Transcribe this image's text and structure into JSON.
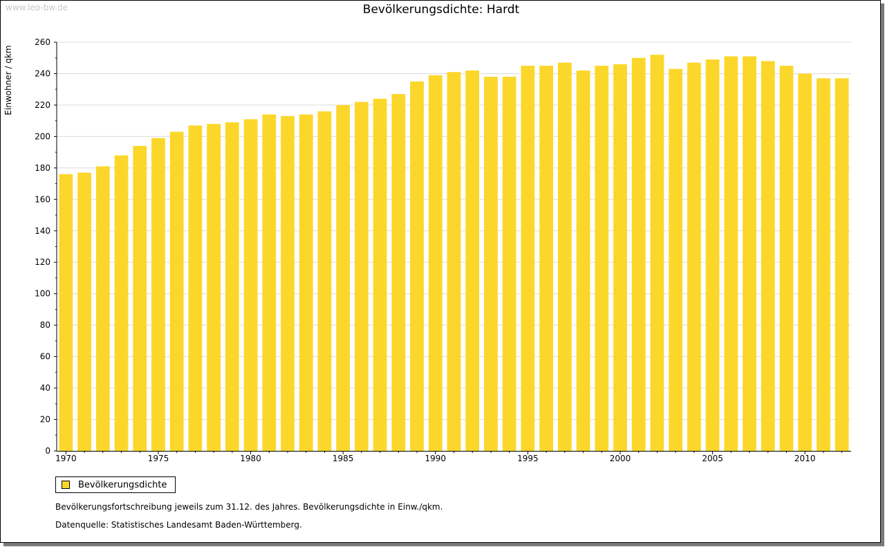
{
  "watermark": "www.leo-bw.de",
  "chart_data": {
    "type": "bar",
    "title": "Bevölkerungsdichte: Hardt",
    "xlabel": "",
    "ylabel": "Einwohner / qkm",
    "ylim": [
      0,
      260
    ],
    "yticks": [
      0,
      20,
      40,
      60,
      80,
      100,
      120,
      140,
      160,
      180,
      200,
      220,
      240,
      260
    ],
    "grid": true,
    "legend": "bottom-left",
    "categories": [
      "1970",
      "1971",
      "1972",
      "1973",
      "1974",
      "1975",
      "1976",
      "1977",
      "1978",
      "1979",
      "1980",
      "1981",
      "1982",
      "1983",
      "1984",
      "1985",
      "1986",
      "1987",
      "1988",
      "1989",
      "1990",
      "1991",
      "1992",
      "1993",
      "1994",
      "1995",
      "1996",
      "1997",
      "1998",
      "1999",
      "2000",
      "2001",
      "2002",
      "2003",
      "2004",
      "2005",
      "2006",
      "2007",
      "2008",
      "2009",
      "2010",
      "2011",
      "2012"
    ],
    "xtick_labels": [
      "1970",
      "1975",
      "1980",
      "1985",
      "1990",
      "1995",
      "2000",
      "2005",
      "2010"
    ],
    "series": [
      {
        "name": "Bevölkerungsdichte",
        "color": "#fcd72b",
        "values": [
          176,
          177,
          181,
          188,
          194,
          199,
          203,
          207,
          208,
          209,
          211,
          214,
          213,
          214,
          216,
          220,
          222,
          224,
          227,
          235,
          239,
          241,
          242,
          238,
          238,
          245,
          245,
          247,
          242,
          245,
          246,
          250,
          252,
          243,
          247,
          249,
          251,
          251,
          248,
          245,
          240,
          237,
          237
        ]
      }
    ]
  },
  "legend": {
    "label": "Bevölkerungsdichte",
    "color": "#fcd72b"
  },
  "footnotes": {
    "line1": "Bevölkerungsfortschreibung jeweils zum 31.12. des Jahres. Bevölkerungsdichte in Einw./qkm.",
    "line2": "Datenquelle: Statistisches Landesamt Baden-Württemberg."
  }
}
